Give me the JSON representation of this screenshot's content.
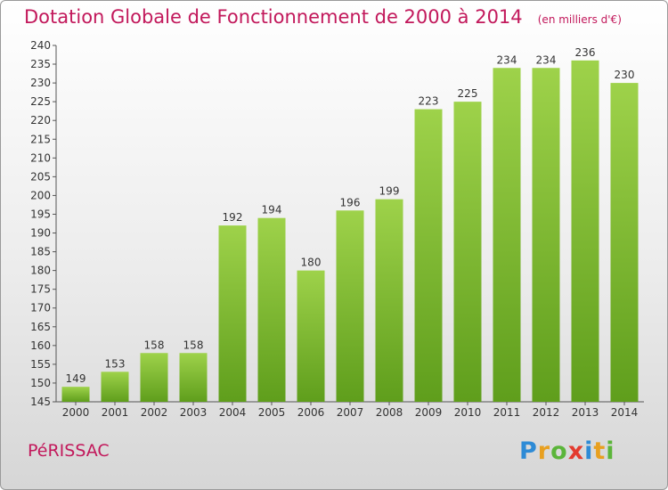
{
  "header": {
    "title": "Dotation Globale de Fonctionnement de 2000 à 2014",
    "subtitle": "(en milliers d'€)"
  },
  "footer": {
    "commune": "PéRISSAC",
    "logo_letters": [
      "P",
      "r",
      "o",
      "x",
      "i",
      "t",
      "i"
    ],
    "logo_colors": [
      "#2e8bd6",
      "#e8a020",
      "#5bb53a",
      "#e33b2f",
      "#2e8bd6",
      "#e8a020",
      "#5bb53a"
    ]
  },
  "colors": {
    "bar_light": "#9ed24a",
    "bar_dark": "#5f9e1c",
    "title": "#c2185b"
  },
  "chart_data": {
    "type": "bar",
    "categories": [
      "2000",
      "2001",
      "2002",
      "2003",
      "2004",
      "2005",
      "2006",
      "2007",
      "2008",
      "2009",
      "2010",
      "2011",
      "2012",
      "2013",
      "2014"
    ],
    "values": [
      149,
      153,
      158,
      158,
      192,
      194,
      180,
      196,
      199,
      223,
      225,
      234,
      234,
      236,
      230
    ],
    "ylim": [
      145,
      240
    ],
    "ytick_step": 5,
    "grid": false,
    "legend": "none"
  }
}
